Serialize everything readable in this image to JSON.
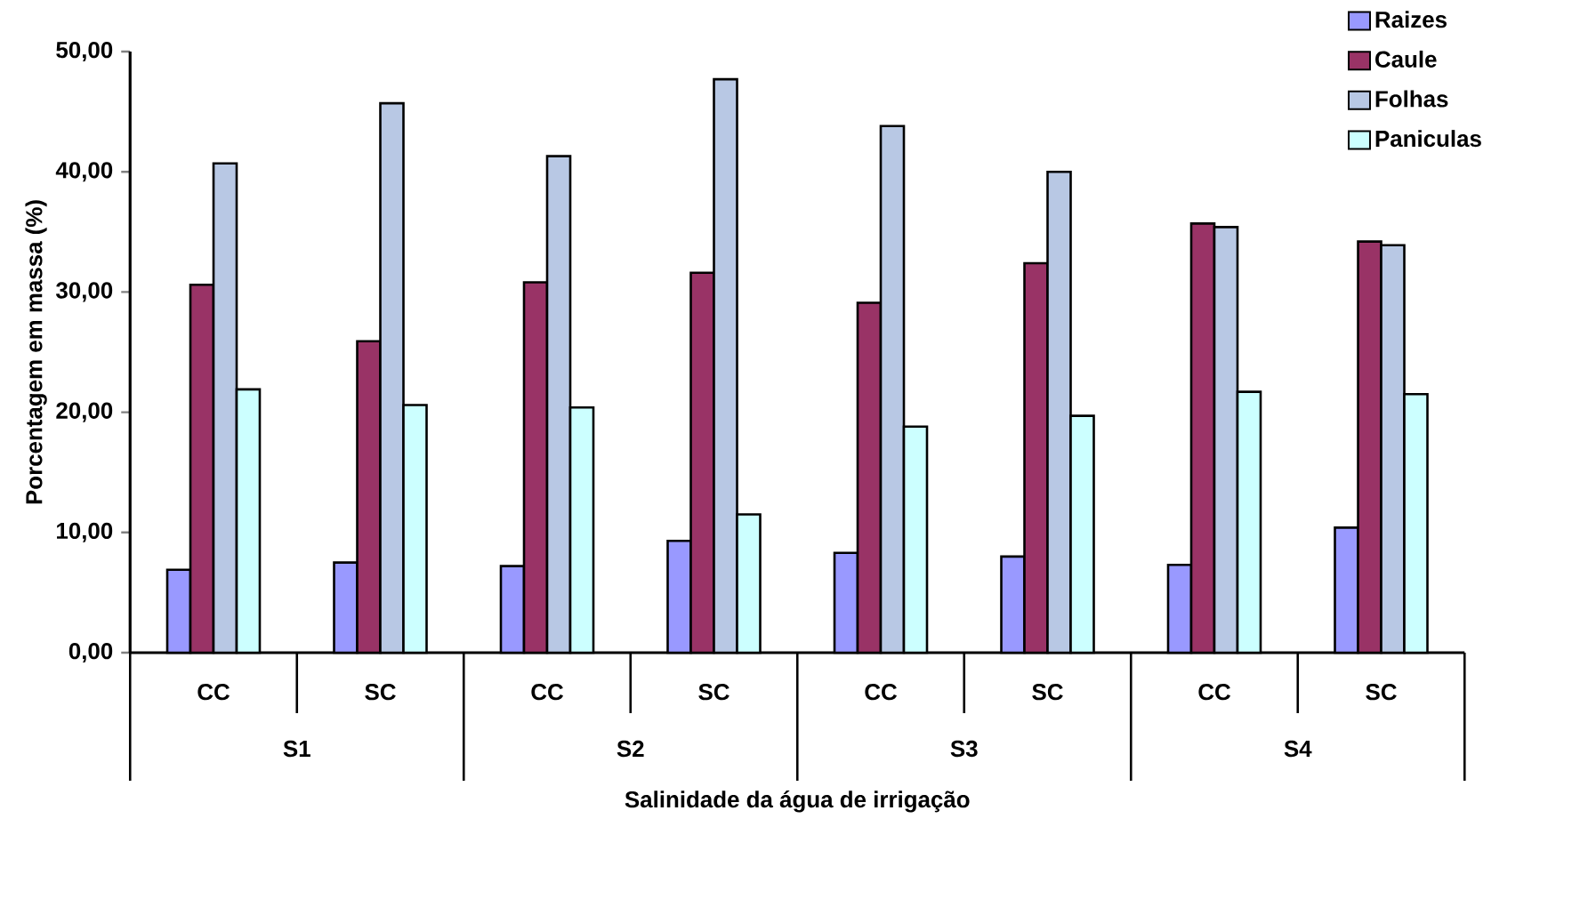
{
  "chart_data": {
    "type": "bar",
    "xlabel": "Salinidade da água de irrigação",
    "ylabel": "Porcentagem em massa (%)",
    "categories": [
      "CC",
      "SC",
      "CC",
      "SC",
      "CC",
      "SC",
      "CC",
      "SC"
    ],
    "annotations": [
      "S1",
      "S2",
      "S3",
      "S4"
    ],
    "series": [
      {
        "name": "Raizes",
        "color": "#9999ff",
        "values": [
          6.9,
          7.5,
          7.2,
          9.3,
          8.3,
          8.0,
          7.3,
          10.4
        ]
      },
      {
        "name": "Caule",
        "color": "#993366",
        "values": [
          30.6,
          25.9,
          30.8,
          31.6,
          29.1,
          32.4,
          35.7,
          34.2
        ]
      },
      {
        "name": "Folhas",
        "color": "#b8c8e4",
        "values": [
          40.7,
          45.7,
          41.3,
          47.7,
          43.8,
          40.0,
          35.4,
          33.9
        ]
      },
      {
        "name": "Paniculas",
        "color": "#ccffff",
        "values": [
          21.9,
          20.6,
          20.4,
          11.5,
          18.8,
          19.7,
          21.7,
          21.5
        ]
      }
    ],
    "ylim": [
      0,
      50
    ],
    "yticks": [
      {
        "value": 0,
        "label": "0,00"
      },
      {
        "value": 10,
        "label": "10,00"
      },
      {
        "value": 20,
        "label": "20,00"
      },
      {
        "value": 30,
        "label": "30,00"
      },
      {
        "value": 40,
        "label": "40,00"
      },
      {
        "value": 50,
        "label": "50,00"
      }
    ],
    "legend": "top right"
  }
}
